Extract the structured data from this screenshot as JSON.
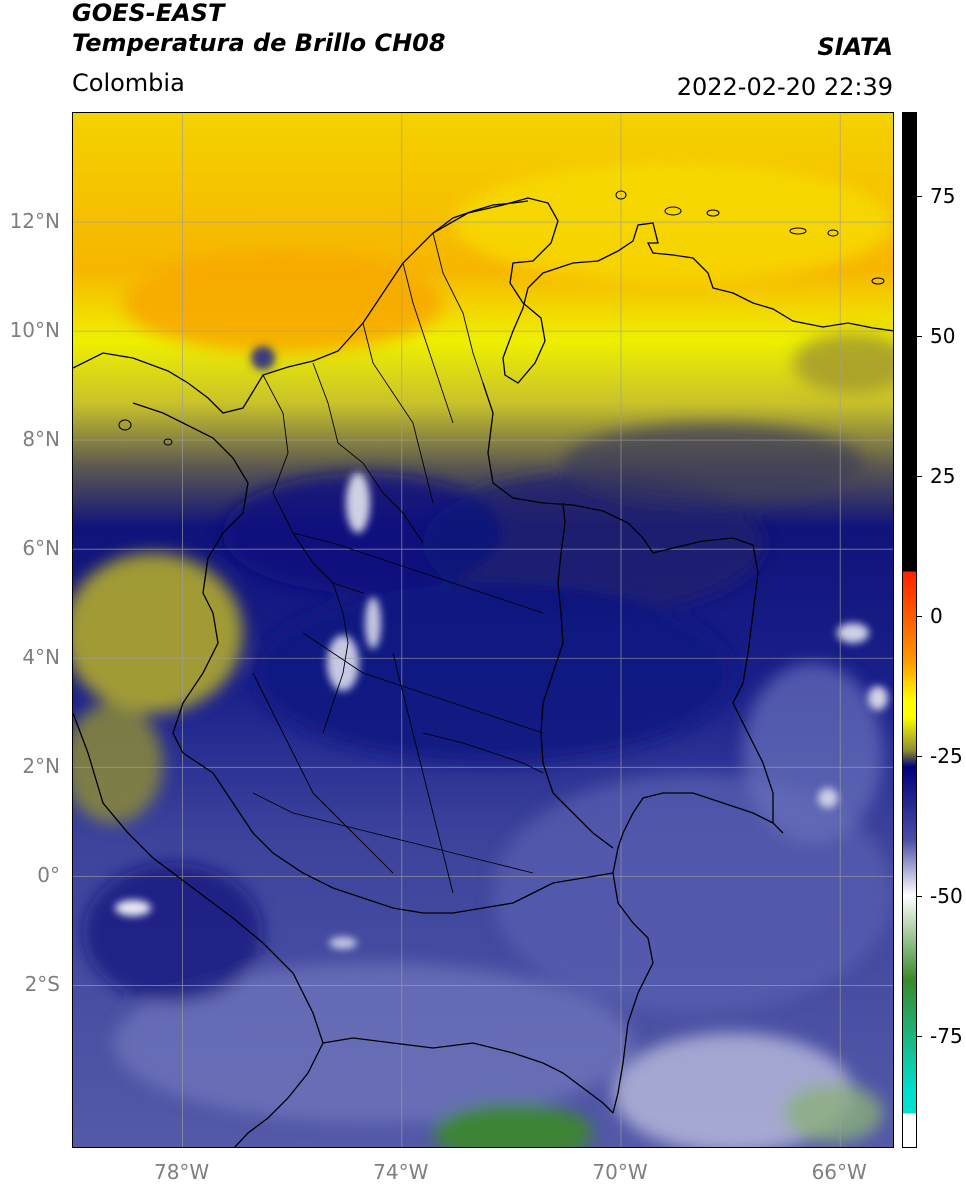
{
  "header": {
    "satellite": "GOES-EAST",
    "product": "Temperatura de Brillo CH08",
    "region": "Colombia",
    "source": "SIATA",
    "datetime": "2022-02-20 22:39"
  },
  "map": {
    "lat_labels": [
      "12°N",
      "10°N",
      "8°N",
      "6°N",
      "4°N",
      "2°N",
      "0°",
      "2°S"
    ],
    "lon_labels": [
      "78°W",
      "74°W",
      "70°W",
      "66°W"
    ],
    "lat_values": [
      12,
      10,
      8,
      6,
      4,
      2,
      0,
      -2
    ],
    "lon_values": [
      -78,
      -74,
      -70,
      -66
    ],
    "extent": {
      "lon_min": -80,
      "lon_max": -65,
      "lat_min": -5,
      "lat_max": 14
    }
  },
  "colorbar": {
    "labels": [
      "75",
      "50",
      "25",
      "0",
      "-25",
      "-50",
      "-75"
    ],
    "values": [
      75,
      50,
      25,
      0,
      -25,
      -50,
      -75
    ],
    "range": [
      -95,
      90
    ],
    "colors": {
      "warm_black": "#000000",
      "red": "#ff2000",
      "orange": "#ff9900",
      "yellow": "#ffff00",
      "olive": "#8f8f30",
      "navy": "#000080",
      "blue_mid": "#4a4fa5",
      "light": "#ffffff",
      "green": "#3a8a2a",
      "teal": "#00e0d0"
    }
  }
}
